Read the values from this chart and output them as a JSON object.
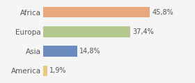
{
  "categories": [
    "Africa",
    "Europa",
    "Asia",
    "America"
  ],
  "values": [
    45.8,
    37.4,
    14.8,
    1.9
  ],
  "labels": [
    "45,8%",
    "37,4%",
    "14,8%",
    "1,9%"
  ],
  "bar_colors": [
    "#e8a97e",
    "#b5c98e",
    "#6b8bbf",
    "#e8c97e"
  ],
  "background_color": "#f5f5f5",
  "xlim": [
    0,
    55
  ],
  "bar_height": 0.55,
  "label_fontsize": 7,
  "tick_fontsize": 7.5
}
